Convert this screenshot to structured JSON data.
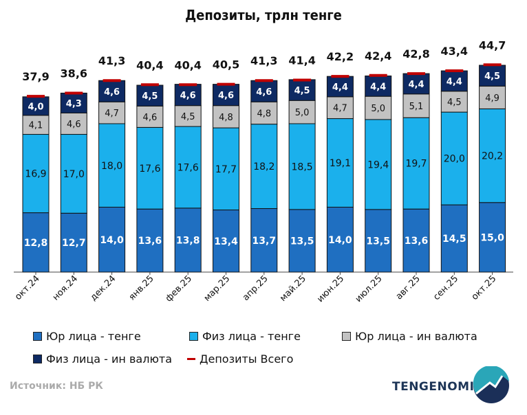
{
  "chart_data": {
    "type": "bar",
    "stacked": true,
    "title": "Депозиты, трлн тенге",
    "categories": [
      "окт.24",
      "ноя.24",
      "дек.24",
      "янв.25",
      "фев.25",
      "мар.25",
      "апр.25",
      "май.25",
      "июн.25",
      "июл.25",
      "авг.25",
      "сен.25",
      "окт.25"
    ],
    "series": [
      {
        "name": "Юр лица - тенге",
        "color": "#1f6fc1",
        "label_color": "#ffffff",
        "values": [
          12.8,
          12.7,
          14.0,
          13.6,
          13.8,
          13.4,
          13.7,
          13.5,
          14.0,
          13.5,
          13.6,
          14.5,
          15.0
        ]
      },
      {
        "name": "Физ лица - тенге",
        "color": "#1bb0ec",
        "label_color": "#111111",
        "values": [
          16.9,
          17.0,
          18.0,
          17.6,
          17.6,
          17.7,
          18.2,
          18.5,
          19.1,
          19.4,
          19.7,
          20.0,
          20.2
        ]
      },
      {
        "name": "Юр лица - ин валюта",
        "color": "#c2c2c2",
        "label_color": "#111111",
        "values": [
          4.1,
          4.6,
          4.7,
          4.6,
          4.5,
          4.8,
          4.8,
          5.0,
          4.7,
          5.0,
          5.1,
          4.5,
          4.9
        ]
      },
      {
        "name": "Физ лица - ин валюта",
        "color": "#0e2a63",
        "label_color": "#ffffff",
        "values": [
          4.0,
          4.3,
          4.6,
          4.5,
          4.6,
          4.6,
          4.6,
          4.5,
          4.4,
          4.4,
          4.4,
          4.4,
          4.5
        ]
      }
    ],
    "total": {
      "name": "Депозиты Всего",
      "color": "#c00000",
      "values": [
        37.9,
        38.6,
        41.3,
        40.4,
        40.4,
        40.5,
        41.3,
        41.4,
        42.2,
        42.4,
        42.8,
        43.4,
        44.7
      ]
    },
    "ylim": [
      0,
      50
    ],
    "grid": false,
    "legend_position": "bottom"
  },
  "footer": {
    "source": "Источник: НБ РК",
    "logo": "TENGENOMIKA"
  }
}
